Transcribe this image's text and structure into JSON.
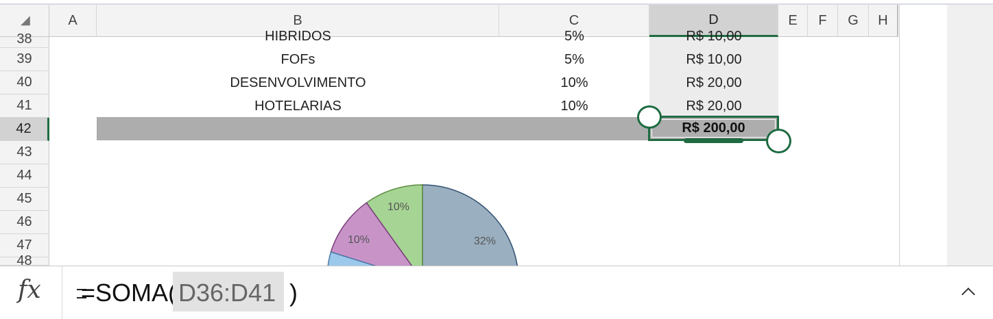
{
  "columns": [
    "A",
    "B",
    "C",
    "D",
    "E",
    "F",
    "G",
    "H"
  ],
  "select_all_glyph": "◢",
  "rows": [
    {
      "num": "38",
      "name": "HIBRIDOS",
      "pct": "5%",
      "value": "R$ 10,00"
    },
    {
      "num": "39",
      "name": "FOFs",
      "pct": "5%",
      "value": "R$ 10,00"
    },
    {
      "num": "40",
      "name": "DESENVOLVIMENTO",
      "pct": "10%",
      "value": "R$ 20,00"
    },
    {
      "num": "41",
      "name": "HOTELARIAS",
      "pct": "10%",
      "value": "R$ 20,00"
    }
  ],
  "total_row": {
    "num": "42",
    "value": "R$ 200,00"
  },
  "empty_rows": [
    "43",
    "44",
    "45",
    "46",
    "47",
    "48"
  ],
  "pie_labels": [
    "32%",
    "10%",
    "10%"
  ],
  "chart_data": {
    "type": "pie",
    "slice_labels": [
      "32%",
      "10%",
      "10%"
    ],
    "values": [
      32,
      10,
      10
    ],
    "colors": [
      "#9aafc0",
      "#c894c8",
      "#a6d494",
      "#9cc8ec"
    ]
  },
  "formula_bar": {
    "fx_label": "fx",
    "formula_prefix": "=SOMA(",
    "formula_range": "D36:D41",
    "formula_suffix": ")",
    "collapse_icon": "^"
  },
  "colors": {
    "accent": "#1e6b41",
    "total_fill": "#adadad",
    "header_bg": "#f3f3f3"
  }
}
